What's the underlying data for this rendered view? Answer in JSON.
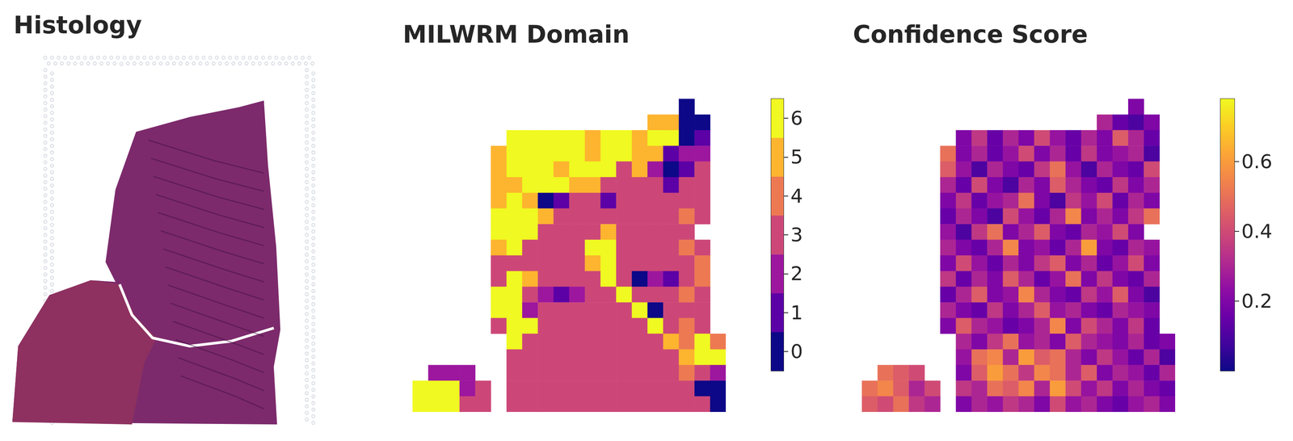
{
  "chart_data": [
    {
      "type": "image",
      "title": "Histology"
    },
    {
      "type": "heatmap",
      "title": "MILWRM Domain",
      "tick_labels": false,
      "colors": [
        "#0d0887",
        "#5c01a6",
        "#9c179e",
        "#cc4778",
        "#ed7953",
        "#fdb42f",
        "#f0f921"
      ],
      "color_range": [
        -0.5,
        6.5
      ],
      "color_ticks": [
        0,
        1,
        2,
        3,
        4,
        5,
        6
      ],
      "values": [
        [
          null,
          null,
          null,
          null,
          null,
          null,
          null,
          null,
          null,
          null,
          null,
          null,
          null,
          null,
          null,
          null,
          null,
          0,
          null,
          null
        ],
        [
          null,
          null,
          null,
          null,
          null,
          null,
          null,
          null,
          null,
          null,
          null,
          null,
          null,
          null,
          null,
          5,
          5,
          0,
          0,
          null
        ],
        [
          null,
          null,
          null,
          null,
          null,
          null,
          6,
          6,
          6,
          6,
          6,
          5,
          6,
          6,
          5,
          6,
          6,
          0,
          1,
          null
        ],
        [
          null,
          null,
          null,
          null,
          null,
          5,
          6,
          6,
          6,
          6,
          6,
          5,
          6,
          6,
          5,
          5,
          1,
          2,
          2,
          null
        ],
        [
          null,
          null,
          null,
          null,
          null,
          5,
          6,
          6,
          6,
          5,
          6,
          6,
          6,
          3,
          5,
          2,
          0,
          1,
          3,
          null
        ],
        [
          null,
          null,
          null,
          null,
          null,
          5,
          5,
          6,
          6,
          6,
          5,
          5,
          3,
          3,
          3,
          3,
          1,
          3,
          3,
          null
        ],
        [
          null,
          null,
          null,
          null,
          null,
          5,
          6,
          5,
          0,
          1,
          3,
          3,
          1,
          3,
          3,
          3,
          3,
          3,
          3,
          null
        ],
        [
          null,
          null,
          null,
          null,
          null,
          6,
          6,
          6,
          5,
          3,
          3,
          3,
          3,
          3,
          3,
          3,
          3,
          4,
          3,
          null
        ],
        [
          null,
          null,
          null,
          null,
          null,
          6,
          6,
          6,
          3,
          3,
          3,
          3,
          5,
          3,
          3,
          3,
          3,
          3,
          null,
          null
        ],
        [
          null,
          null,
          null,
          null,
          null,
          5,
          6,
          3,
          3,
          3,
          3,
          6,
          6,
          3,
          3,
          3,
          3,
          4,
          3,
          null
        ],
        [
          null,
          null,
          null,
          null,
          null,
          3,
          3,
          3,
          3,
          3,
          3,
          5,
          6,
          3,
          3,
          3,
          3,
          3,
          4,
          null
        ],
        [
          null,
          null,
          null,
          null,
          null,
          3,
          6,
          5,
          3,
          3,
          3,
          3,
          6,
          3,
          0,
          2,
          1,
          3,
          4,
          null
        ],
        [
          null,
          null,
          null,
          null,
          null,
          6,
          6,
          3,
          2,
          1,
          2,
          3,
          3,
          6,
          3,
          3,
          3,
          4,
          3,
          null
        ],
        [
          null,
          null,
          null,
          null,
          null,
          6,
          6,
          2,
          3,
          3,
          3,
          3,
          3,
          3,
          6,
          0,
          3,
          3,
          3,
          null
        ],
        [
          null,
          null,
          null,
          null,
          null,
          3,
          6,
          6,
          3,
          3,
          3,
          3,
          3,
          3,
          3,
          6,
          3,
          4,
          3,
          null
        ],
        [
          null,
          null,
          null,
          null,
          null,
          null,
          6,
          3,
          3,
          3,
          3,
          3,
          3,
          3,
          3,
          3,
          5,
          4,
          6,
          4
        ],
        [
          null,
          null,
          null,
          null,
          null,
          null,
          3,
          3,
          3,
          3,
          3,
          3,
          3,
          3,
          3,
          3,
          3,
          5,
          6,
          6
        ],
        [
          null,
          2,
          2,
          2,
          null,
          null,
          3,
          3,
          3,
          3,
          3,
          3,
          3,
          3,
          3,
          3,
          3,
          4,
          3,
          2
        ],
        [
          6,
          6,
          6,
          2,
          3,
          null,
          3,
          3,
          3,
          3,
          3,
          3,
          3,
          3,
          3,
          3,
          3,
          3,
          0,
          0
        ],
        [
          6,
          6,
          6,
          3,
          3,
          null,
          3,
          3,
          3,
          3,
          3,
          3,
          3,
          3,
          3,
          3,
          3,
          3,
          3,
          0
        ]
      ]
    },
    {
      "type": "heatmap",
      "title": "Confidence Score",
      "tick_labels": false,
      "color_range": [
        0.0,
        0.78
      ],
      "color_ticks": [
        0.2,
        0.4,
        0.6
      ],
      "values": [
        [
          null,
          null,
          null,
          null,
          null,
          null,
          null,
          null,
          null,
          null,
          null,
          null,
          null,
          null,
          null,
          null,
          null,
          0.2,
          null,
          null
        ],
        [
          null,
          null,
          null,
          null,
          null,
          null,
          null,
          null,
          null,
          null,
          null,
          null,
          null,
          null,
          null,
          0.3,
          0.15,
          0.1,
          0.2,
          null
        ],
        [
          null,
          null,
          null,
          null,
          null,
          null,
          0.2,
          0.35,
          0.15,
          0.3,
          0.2,
          0.4,
          0.25,
          0.15,
          0.3,
          0.2,
          0.45,
          0.3,
          0.15,
          null
        ],
        [
          null,
          null,
          null,
          null,
          null,
          0.5,
          0.2,
          0.3,
          0.15,
          0.25,
          0.4,
          0.2,
          0.3,
          0.15,
          0.35,
          0.2,
          0.25,
          0.3,
          0.1,
          null
        ],
        [
          null,
          null,
          null,
          null,
          null,
          0.45,
          0.25,
          0.1,
          0.3,
          0.2,
          0.15,
          0.35,
          0.5,
          0.25,
          0.1,
          0.3,
          0.2,
          0.15,
          0.4,
          null
        ],
        [
          null,
          null,
          null,
          null,
          null,
          0.3,
          0.15,
          0.4,
          0.2,
          0.1,
          0.3,
          0.2,
          0.45,
          0.3,
          0.2,
          0.15,
          0.35,
          0.2,
          0.3,
          null
        ],
        [
          null,
          null,
          null,
          null,
          null,
          0.2,
          0.35,
          0.15,
          0.25,
          0.3,
          0.5,
          0.2,
          0.1,
          0.35,
          0.25,
          0.4,
          0.15,
          0.3,
          0.2,
          null
        ],
        [
          null,
          null,
          null,
          null,
          null,
          0.15,
          0.3,
          0.2,
          0.1,
          0.4,
          0.25,
          0.15,
          0.3,
          0.55,
          0.2,
          0.3,
          0.2,
          0.35,
          0.5,
          null
        ],
        [
          null,
          null,
          null,
          null,
          null,
          0.25,
          0.1,
          0.35,
          0.5,
          0.2,
          0.3,
          0.45,
          0.2,
          0.15,
          0.3,
          0.25,
          0.4,
          0.2,
          null,
          null
        ],
        [
          null,
          null,
          null,
          null,
          null,
          0.3,
          0.2,
          0.15,
          0.3,
          0.55,
          0.2,
          0.25,
          0.15,
          0.3,
          0.6,
          0.2,
          0.15,
          0.3,
          0.25,
          null
        ],
        [
          null,
          null,
          null,
          null,
          null,
          0.2,
          0.4,
          0.25,
          0.15,
          0.3,
          0.2,
          0.35,
          0.45,
          0.2,
          0.3,
          0.15,
          0.25,
          0.4,
          0.2,
          null
        ],
        [
          null,
          null,
          null,
          null,
          null,
          0.35,
          0.15,
          0.3,
          0.2,
          0.45,
          0.3,
          0.15,
          0.25,
          0.5,
          0.2,
          0.35,
          0.2,
          0.15,
          0.3,
          null
        ],
        [
          null,
          null,
          null,
          null,
          null,
          0.15,
          0.3,
          0.45,
          0.2,
          0.25,
          0.55,
          0.3,
          0.2,
          0.15,
          0.35,
          0.25,
          0.45,
          0.2,
          0.1,
          null
        ],
        [
          null,
          null,
          null,
          null,
          null,
          0.3,
          0.2,
          0.15,
          0.35,
          0.2,
          0.3,
          0.45,
          0.25,
          0.3,
          0.2,
          0.15,
          0.3,
          0.25,
          0.2,
          null
        ],
        [
          null,
          null,
          null,
          null,
          null,
          0.2,
          0.45,
          0.3,
          0.25,
          0.15,
          0.2,
          0.3,
          0.55,
          0.2,
          0.4,
          0.3,
          0.2,
          0.35,
          0.15,
          null
        ],
        [
          null,
          null,
          null,
          null,
          null,
          null,
          0.3,
          0.2,
          0.35,
          0.5,
          0.25,
          0.3,
          0.2,
          0.45,
          0.3,
          0.25,
          0.2,
          0.3,
          0.15,
          0.2
        ],
        [
          null,
          null,
          null,
          null,
          null,
          null,
          0.25,
          0.5,
          0.55,
          0.3,
          0.6,
          0.45,
          0.5,
          0.3,
          0.2,
          0.35,
          0.25,
          0.15,
          0.3,
          0.1
        ],
        [
          null,
          0.5,
          0.45,
          0.4,
          null,
          null,
          0.2,
          0.45,
          0.6,
          0.5,
          0.35,
          0.55,
          0.5,
          0.3,
          0.45,
          0.2,
          0.3,
          0.25,
          0.15,
          0.3
        ],
        [
          0.5,
          0.55,
          0.45,
          0.3,
          0.4,
          null,
          0.35,
          0.3,
          0.5,
          0.45,
          0.55,
          0.3,
          0.6,
          0.4,
          0.25,
          0.35,
          0.2,
          0.3,
          0.2,
          0.15
        ],
        [
          0.45,
          0.4,
          0.5,
          0.35,
          0.3,
          null,
          0.2,
          0.3,
          0.25,
          0.35,
          0.3,
          0.2,
          0.4,
          0.25,
          0.3,
          0.2,
          0.15,
          0.25,
          0.3,
          0.2
        ]
      ]
    }
  ]
}
